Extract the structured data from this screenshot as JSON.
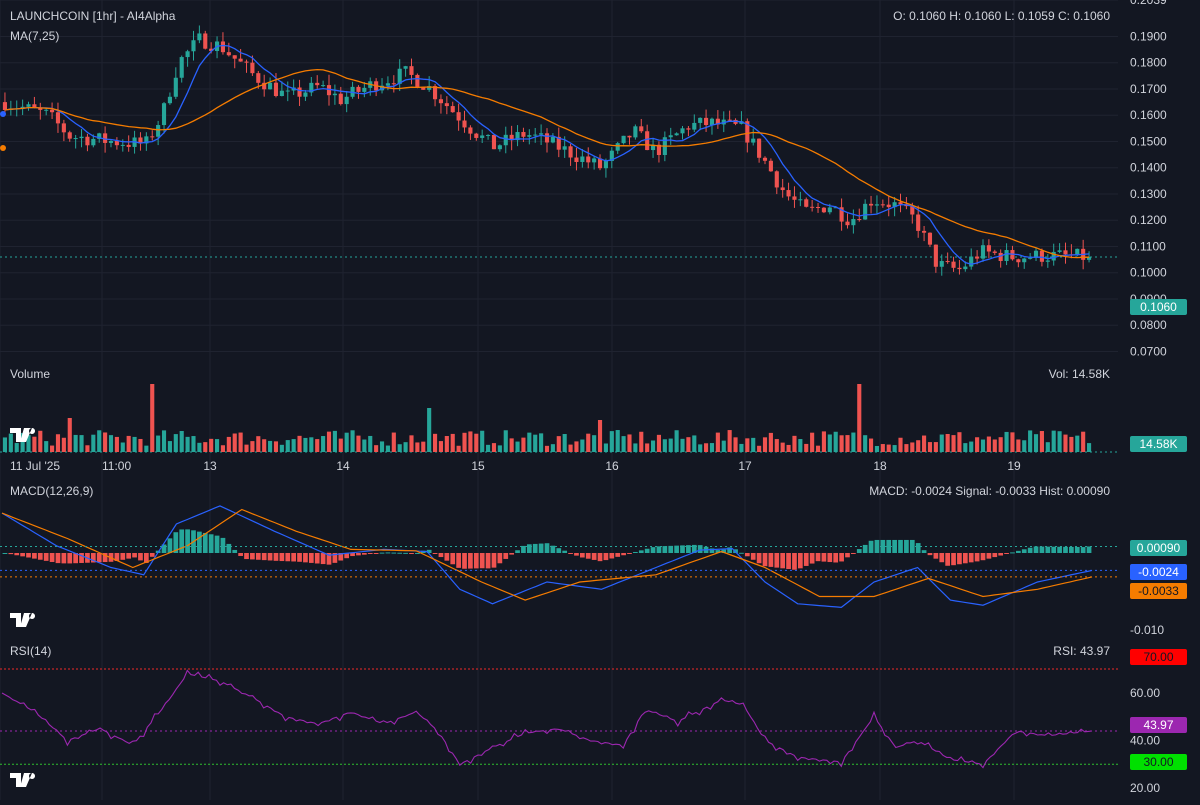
{
  "header": {
    "title": "LAUNCHCOIN [1hr] - AI4Alpha",
    "ma_label": "MA(7,25)",
    "ohlc": "O: 0.1060 H: 0.1060 L: 0.1059 C: 0.1060",
    "volume_label": "Volume",
    "volume_value": "Vol: 14.58K",
    "volume_tag": "14.58K",
    "price_tag": "0.1060",
    "macd_label": "MACD(12,26,9)",
    "macd_values": "MACD: -0.0024 Signal: -0.0033 Hist: 0.00090",
    "macd_tags": [
      "0.00090",
      "-0.0024",
      "-0.0033"
    ],
    "macd_axis_low": "-0.010",
    "rsi_label": "RSI(14)",
    "rsi_value": "RSI: 43.97",
    "rsi_tags": [
      "70.00",
      "43.97",
      "30.00"
    ]
  },
  "colors": {
    "background": "#131722",
    "up": "#26a69a",
    "down": "#ef5350",
    "ma7": "#2962ff",
    "ma25": "#f57c00",
    "macd": "#2962ff",
    "signal": "#f57c00",
    "rsi": "#9c27b0",
    "rsi_upper": "#ef2828",
    "rsi_lower": "#2ebd2e"
  },
  "chart_data": [
    {
      "type": "candlestick",
      "title": "LAUNCHCOIN [1hr] - AI4Alpha",
      "x_ticks": [
        "11 Jul '25",
        "11:00",
        "13",
        "14",
        "15",
        "16",
        "17",
        "18",
        "19"
      ],
      "y_ticks": [
        "0.2039",
        "0.1900",
        "0.1800",
        "0.1700",
        "0.1600",
        "0.1500",
        "0.1400",
        "0.1300",
        "0.1200",
        "0.1100",
        "0.1000",
        "0.0900",
        "0.0800",
        "0.0700"
      ],
      "y_range": [
        0.066,
        0.2039
      ],
      "last_price": 0.106,
      "close_path": [
        {
          "x": 0,
          "y": 0.165
        },
        {
          "x": 0.04,
          "y": 0.16
        },
        {
          "x": 0.06,
          "y": 0.152
        },
        {
          "x": 0.1,
          "y": 0.15
        },
        {
          "x": 0.13,
          "y": 0.149
        },
        {
          "x": 0.145,
          "y": 0.16
        },
        {
          "x": 0.16,
          "y": 0.18
        },
        {
          "x": 0.18,
          "y": 0.189
        },
        {
          "x": 0.2,
          "y": 0.186
        },
        {
          "x": 0.23,
          "y": 0.175
        },
        {
          "x": 0.26,
          "y": 0.167
        },
        {
          "x": 0.29,
          "y": 0.171
        },
        {
          "x": 0.31,
          "y": 0.166
        },
        {
          "x": 0.34,
          "y": 0.172
        },
        {
          "x": 0.37,
          "y": 0.176
        },
        {
          "x": 0.39,
          "y": 0.171
        },
        {
          "x": 0.41,
          "y": 0.163
        },
        {
          "x": 0.43,
          "y": 0.155
        },
        {
          "x": 0.45,
          "y": 0.148
        },
        {
          "x": 0.48,
          "y": 0.153
        },
        {
          "x": 0.5,
          "y": 0.15
        },
        {
          "x": 0.53,
          "y": 0.144
        },
        {
          "x": 0.55,
          "y": 0.14
        },
        {
          "x": 0.58,
          "y": 0.154
        },
        {
          "x": 0.6,
          "y": 0.146
        },
        {
          "x": 0.63,
          "y": 0.156
        },
        {
          "x": 0.65,
          "y": 0.157
        },
        {
          "x": 0.68,
          "y": 0.155
        },
        {
          "x": 0.7,
          "y": 0.143
        },
        {
          "x": 0.72,
          "y": 0.13
        },
        {
          "x": 0.74,
          "y": 0.123
        },
        {
          "x": 0.76,
          "y": 0.126
        },
        {
          "x": 0.78,
          "y": 0.12
        },
        {
          "x": 0.8,
          "y": 0.128
        },
        {
          "x": 0.82,
          "y": 0.126
        },
        {
          "x": 0.84,
          "y": 0.12
        },
        {
          "x": 0.86,
          "y": 0.103
        },
        {
          "x": 0.88,
          "y": 0.101
        },
        {
          "x": 0.9,
          "y": 0.108
        },
        {
          "x": 0.93,
          "y": 0.106
        },
        {
          "x": 0.96,
          "y": 0.1065
        },
        {
          "x": 1.0,
          "y": 0.106
        }
      ],
      "candle_count": 185,
      "series": [
        {
          "name": "MA(7)"
        },
        {
          "name": "MA(25)"
        }
      ]
    },
    {
      "type": "bar",
      "title": "Volume",
      "last_value": "14.58K",
      "spikes": [
        {
          "x": 0.135,
          "y": 68
        },
        {
          "x": 0.79,
          "y": 68
        },
        {
          "x": 0.392,
          "y": 44
        },
        {
          "x": 0.548,
          "y": 32
        },
        {
          "x": 0.06,
          "y": 34
        }
      ],
      "base_range": [
        6,
        22
      ]
    },
    {
      "type": "line",
      "title": "MACD(12,26,9)",
      "y_ticks": [
        "-0.010"
      ],
      "y_range": [
        -0.012,
        0.008
      ],
      "macd_last": -0.0024,
      "signal_last": -0.0033,
      "hist_last": 0.0009,
      "macd_path": [
        {
          "x": 0,
          "y": 0.0055
        },
        {
          "x": 0.05,
          "y": 0.001
        },
        {
          "x": 0.1,
          "y": -0.002
        },
        {
          "x": 0.13,
          "y": -0.003
        },
        {
          "x": 0.16,
          "y": 0.004
        },
        {
          "x": 0.2,
          "y": 0.0065
        },
        {
          "x": 0.25,
          "y": 0.003
        },
        {
          "x": 0.3,
          "y": -0.0003
        },
        {
          "x": 0.35,
          "y": 0.0005
        },
        {
          "x": 0.39,
          "y": 0.0002
        },
        {
          "x": 0.42,
          "y": -0.005
        },
        {
          "x": 0.45,
          "y": -0.007
        },
        {
          "x": 0.5,
          "y": -0.004
        },
        {
          "x": 0.55,
          "y": -0.005
        },
        {
          "x": 0.6,
          "y": -0.002
        },
        {
          "x": 0.64,
          "y": 0.0004
        },
        {
          "x": 0.67,
          "y": 0.0006
        },
        {
          "x": 0.7,
          "y": -0.004
        },
        {
          "x": 0.73,
          "y": -0.007
        },
        {
          "x": 0.77,
          "y": -0.0075
        },
        {
          "x": 0.8,
          "y": -0.004
        },
        {
          "x": 0.84,
          "y": -0.002
        },
        {
          "x": 0.87,
          "y": -0.0065
        },
        {
          "x": 0.9,
          "y": -0.0072
        },
        {
          "x": 0.95,
          "y": -0.004
        },
        {
          "x": 1.0,
          "y": -0.0024
        }
      ],
      "signal_path": [
        {
          "x": 0,
          "y": 0.0055
        },
        {
          "x": 0.06,
          "y": 0.002
        },
        {
          "x": 0.12,
          "y": -0.002
        },
        {
          "x": 0.17,
          "y": 0.001
        },
        {
          "x": 0.22,
          "y": 0.006
        },
        {
          "x": 0.27,
          "y": 0.003
        },
        {
          "x": 0.32,
          "y": 0.0005
        },
        {
          "x": 0.38,
          "y": 0.0003
        },
        {
          "x": 0.44,
          "y": -0.004
        },
        {
          "x": 0.48,
          "y": -0.0065
        },
        {
          "x": 0.53,
          "y": -0.004
        },
        {
          "x": 0.6,
          "y": -0.003
        },
        {
          "x": 0.66,
          "y": 0.0002
        },
        {
          "x": 0.7,
          "y": -0.002
        },
        {
          "x": 0.75,
          "y": -0.006
        },
        {
          "x": 0.8,
          "y": -0.006
        },
        {
          "x": 0.85,
          "y": -0.0035
        },
        {
          "x": 0.9,
          "y": -0.006
        },
        {
          "x": 0.95,
          "y": -0.005
        },
        {
          "x": 1.0,
          "y": -0.0033
        }
      ]
    },
    {
      "type": "line",
      "title": "RSI(14)",
      "y_ticks": [
        "60.00",
        "40.00",
        "20.00"
      ],
      "y_range": [
        15,
        78
      ],
      "upper": 70,
      "lower": 30,
      "last": 43.97,
      "rsi_path": [
        {
          "x": 0,
          "y": 60
        },
        {
          "x": 0.03,
          "y": 52
        },
        {
          "x": 0.06,
          "y": 40
        },
        {
          "x": 0.09,
          "y": 45
        },
        {
          "x": 0.12,
          "y": 38
        },
        {
          "x": 0.15,
          "y": 55
        },
        {
          "x": 0.17,
          "y": 68
        },
        {
          "x": 0.2,
          "y": 65
        },
        {
          "x": 0.23,
          "y": 58
        },
        {
          "x": 0.26,
          "y": 50
        },
        {
          "x": 0.29,
          "y": 47
        },
        {
          "x": 0.32,
          "y": 52
        },
        {
          "x": 0.35,
          "y": 47
        },
        {
          "x": 0.38,
          "y": 52
        },
        {
          "x": 0.4,
          "y": 44
        },
        {
          "x": 0.42,
          "y": 30
        },
        {
          "x": 0.45,
          "y": 37
        },
        {
          "x": 0.48,
          "y": 43
        },
        {
          "x": 0.51,
          "y": 45
        },
        {
          "x": 0.54,
          "y": 40
        },
        {
          "x": 0.57,
          "y": 38
        },
        {
          "x": 0.59,
          "y": 53
        },
        {
          "x": 0.62,
          "y": 48
        },
        {
          "x": 0.66,
          "y": 57
        },
        {
          "x": 0.68,
          "y": 55
        },
        {
          "x": 0.7,
          "y": 40
        },
        {
          "x": 0.73,
          "y": 33
        },
        {
          "x": 0.77,
          "y": 31
        },
        {
          "x": 0.8,
          "y": 50
        },
        {
          "x": 0.82,
          "y": 37
        },
        {
          "x": 0.84,
          "y": 40
        },
        {
          "x": 0.87,
          "y": 32
        },
        {
          "x": 0.9,
          "y": 30
        },
        {
          "x": 0.93,
          "y": 44
        },
        {
          "x": 0.96,
          "y": 42
        },
        {
          "x": 1.0,
          "y": 43.97
        }
      ]
    }
  ]
}
